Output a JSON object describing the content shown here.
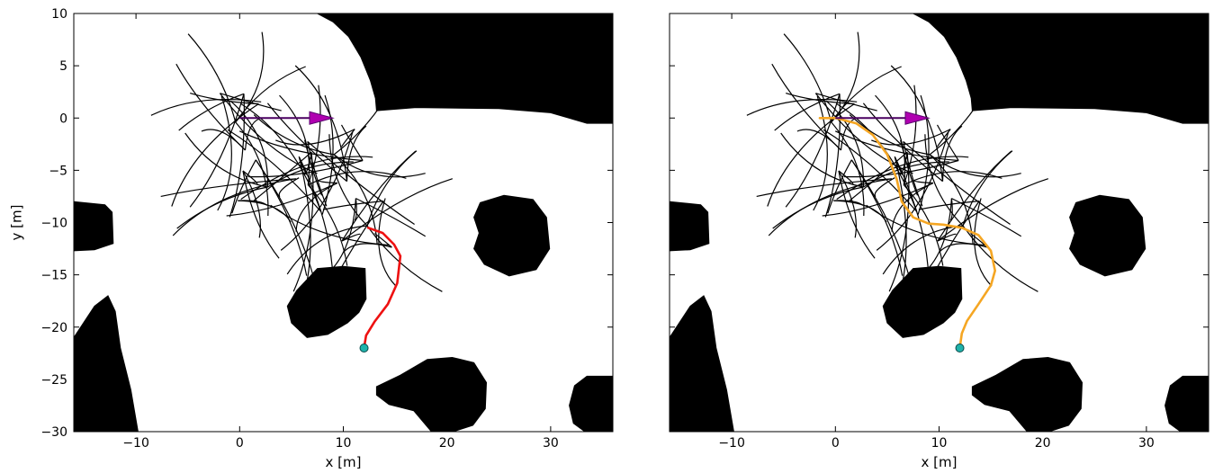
{
  "chart_data": [
    {
      "type": "scatter",
      "panel": "left",
      "xlabel": "x [m]",
      "ylabel": "y [m]",
      "xlim": [
        -16,
        36
      ],
      "ylim": [
        -30,
        10
      ],
      "xticks": [
        -10,
        0,
        10,
        20,
        30
      ],
      "yticks": [
        10,
        5,
        0,
        -5,
        -10,
        -15,
        -20,
        -25,
        -30
      ],
      "show_yticklabels": true,
      "grid": false,
      "heading_arrow": {
        "from": [
          0,
          0
        ],
        "to": [
          9,
          0
        ],
        "color": "#b000b0"
      },
      "goal": {
        "x": 12,
        "y": -22,
        "color": "#20b2aa"
      },
      "path": {
        "color": "#ee1111",
        "points": [
          [
            12,
            -22
          ],
          [
            12.2,
            -20.8
          ],
          [
            13,
            -19.5
          ],
          [
            14.3,
            -17.8
          ],
          [
            15.2,
            -15.8
          ],
          [
            15.5,
            -13.2
          ],
          [
            14.9,
            -12.1
          ],
          [
            13.8,
            -11
          ],
          [
            12.4,
            -10.5
          ]
        ]
      }
    },
    {
      "type": "scatter",
      "panel": "right",
      "xlabel": "x [m]",
      "ylabel": "",
      "xlim": [
        -16,
        36
      ],
      "ylim": [
        -30,
        10
      ],
      "xticks": [
        -10,
        0,
        10,
        20,
        30
      ],
      "yticks": [
        10,
        5,
        0,
        -5,
        -10,
        -15,
        -20,
        -25,
        -30
      ],
      "show_yticklabels": false,
      "grid": false,
      "heading_arrow": {
        "from": [
          0,
          0
        ],
        "to": [
          9,
          0
        ],
        "color": "#b000b0"
      },
      "goal": {
        "x": 12,
        "y": -22,
        "color": "#20b2aa"
      },
      "path": {
        "color": "#f5a623",
        "points": [
          [
            -1.5,
            0
          ],
          [
            0,
            0
          ],
          [
            2,
            -0.5
          ],
          [
            3.6,
            -1.6
          ],
          [
            5,
            -3.5
          ],
          [
            5.9,
            -5.8
          ],
          [
            6.4,
            -8
          ],
          [
            7.5,
            -9.5
          ],
          [
            9,
            -10.1
          ],
          [
            10.4,
            -10.2
          ],
          [
            12.2,
            -10.5
          ],
          [
            13.8,
            -11.2
          ],
          [
            15,
            -12.7
          ],
          [
            15.4,
            -14.6
          ],
          [
            15,
            -16
          ],
          [
            13.8,
            -17.8
          ],
          [
            12.7,
            -19.4
          ],
          [
            12.2,
            -20.6
          ],
          [
            12,
            -22
          ]
        ]
      }
    }
  ],
  "obstacles": [
    {
      "kind": "blob",
      "points": [
        [
          7.5,
          10
        ],
        [
          9,
          9.2
        ],
        [
          10.5,
          7.8
        ],
        [
          11.7,
          5.8
        ],
        [
          12.6,
          3.6
        ],
        [
          13.1,
          1.9
        ],
        [
          13.2,
          0.7
        ],
        [
          17,
          1
        ],
        [
          25,
          0.9
        ],
        [
          30,
          0.5
        ],
        [
          33.5,
          -0.5
        ],
        [
          36,
          -0.5
        ],
        [
          36,
          10
        ]
      ]
    },
    {
      "kind": "blob",
      "points": [
        [
          -16,
          -8
        ],
        [
          -13,
          -8.3
        ],
        [
          -12.3,
          -9
        ],
        [
          -12.2,
          -12
        ],
        [
          -14,
          -12.6
        ],
        [
          -16,
          -12.7
        ]
      ]
    },
    {
      "kind": "blob",
      "points": [
        [
          -16,
          -21
        ],
        [
          -14,
          -18
        ],
        [
          -12.7,
          -17
        ],
        [
          -12,
          -18.5
        ],
        [
          -11.5,
          -22
        ],
        [
          -10.5,
          -26
        ],
        [
          -9.8,
          -30
        ],
        [
          -16,
          -30
        ]
      ]
    },
    {
      "kind": "blob",
      "points": [
        [
          7.5,
          -14.4
        ],
        [
          10,
          -14.2
        ],
        [
          12.1,
          -14.4
        ],
        [
          12.2,
          -17.3
        ],
        [
          11.5,
          -18.6
        ],
        [
          10.4,
          -19.6
        ],
        [
          8.5,
          -20.7
        ],
        [
          6.5,
          -21
        ],
        [
          5,
          -19.6
        ],
        [
          4.6,
          -18
        ],
        [
          5.5,
          -16.5
        ]
      ]
    },
    {
      "kind": "blob",
      "points": [
        [
          23.2,
          -8.1
        ],
        [
          25.5,
          -7.4
        ],
        [
          28.3,
          -7.8
        ],
        [
          29.6,
          -9.5
        ],
        [
          29.9,
          -12.5
        ],
        [
          28.6,
          -14.5
        ],
        [
          26,
          -15.1
        ],
        [
          23.6,
          -14
        ],
        [
          22.6,
          -12.5
        ],
        [
          23.1,
          -11
        ],
        [
          22.6,
          -9.5
        ]
      ]
    },
    {
      "kind": "blob",
      "points": [
        [
          13.2,
          -25.7
        ],
        [
          15.5,
          -24.6
        ],
        [
          18.1,
          -23.1
        ],
        [
          20.5,
          -22.9
        ],
        [
          22.6,
          -23.4
        ],
        [
          23.8,
          -25.3
        ],
        [
          23.7,
          -27.8
        ],
        [
          22.5,
          -29.4
        ],
        [
          20.6,
          -30
        ],
        [
          18.5,
          -30
        ],
        [
          16.8,
          -28
        ],
        [
          14.4,
          -27.4
        ],
        [
          13.2,
          -26.5
        ]
      ]
    },
    {
      "kind": "blob",
      "points": [
        [
          36,
          -24.7
        ],
        [
          33.5,
          -24.7
        ],
        [
          32.3,
          -25.6
        ],
        [
          31.8,
          -27.5
        ],
        [
          32.2,
          -29.2
        ],
        [
          33.3,
          -30
        ],
        [
          36,
          -30
        ]
      ]
    }
  ],
  "trees": [
    {
      "r": [
        -0.4,
        -0.4
      ],
      "e": [
        -5,
        -11.9,
        -10.5,
        -13.8,
        -14.8,
        -16.4,
        -20.3
      ],
      "n": [
        -4.6,
        -8.3,
        -10.1,
        -11.4,
        -12.7,
        -14.9,
        -19.6,
        -20.8,
        -22.4,
        -25.2
      ]
    },
    {
      "r": [
        2.7,
        -6.6
      ],
      "e": [
        -4.3,
        -6,
        -9,
        -10,
        -13.6,
        -16,
        -20
      ],
      "n": [
        -9.5,
        -8.8,
        -12.5,
        -14.5,
        -15,
        -18.7,
        -21.4,
        -20.9,
        -22.5,
        -24.5
      ]
    },
    {
      "r": [
        6.6,
        -6.4
      ],
      "e": [
        -4.4,
        -7.4,
        -11.1,
        -12.5,
        -14.4,
        -17,
        -20.2
      ],
      "n": [
        -9.6,
        -10.1,
        -11.7,
        -14.3,
        -16.3,
        -17.3,
        -18.7,
        -19.8,
        -21.4,
        -24.1
      ]
    },
    {
      "r": [
        9.1,
        -3.5
      ],
      "e": [
        -0.2,
        -3.6,
        -5.4,
        -7.4,
        -9.7,
        -12.2,
        -15.1
      ],
      "n": [
        -7.2,
        -8.9,
        -9.1,
        -10.5,
        -11.7,
        -14.5,
        -16,
        -16.9,
        -19,
        -20
      ]
    },
    {
      "r": [
        12.3,
        -10.3
      ],
      "e": [
        -2.6,
        -5.3,
        -7,
        -10.6,
        -12.1,
        -15.1,
        -17.5
      ],
      "n": [
        -8.3,
        -10.7,
        -12.9,
        -13.3,
        -13.9,
        -15.5,
        -15.6,
        -16.7,
        -18.3,
        -21.4
      ]
    }
  ],
  "tree_steps": [
    [
      0,
      1,
      9
    ],
    [
      0,
      2,
      8.7
    ],
    [
      0,
      3,
      9.6
    ],
    [
      0,
      4,
      9.3
    ],
    [
      1,
      5,
      5.3
    ],
    [
      1,
      6,
      5.3
    ],
    [
      1,
      7,
      5.3
    ],
    [
      2,
      8,
      5.7
    ],
    [
      2,
      9,
      5.7
    ],
    [
      2,
      10,
      5.7
    ],
    [
      3,
      11,
      5.7
    ],
    [
      3,
      12,
      5.7
    ],
    [
      3,
      13,
      5.7
    ],
    [
      4,
      14,
      5
    ],
    [
      4,
      15,
      5
    ],
    [
      4,
      16,
      5
    ]
  ],
  "tree_color": "#000000"
}
